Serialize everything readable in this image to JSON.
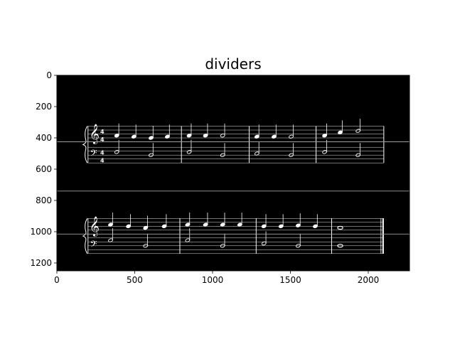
{
  "chart_data": {
    "type": "image",
    "title": "dividers",
    "xlabel": "",
    "ylabel": "",
    "xlim": [
      0,
      2265
    ],
    "ylim": [
      1250,
      0
    ],
    "x_ticks": [
      0,
      500,
      1000,
      1500,
      2000
    ],
    "y_ticks": [
      0,
      200,
      400,
      600,
      800,
      1000,
      1200
    ],
    "grid": false,
    "image_background": "#000000",
    "ink_color": "#ffffff",
    "divider_lines": [
      {
        "name": "system-1-staff-divider",
        "y": 425,
        "x_from": 0,
        "x_to": 2265
      },
      {
        "name": "system-divider",
        "y": 740,
        "x_from": 0,
        "x_to": 2265
      },
      {
        "name": "system-2-staff-divider",
        "y": 1015,
        "x_from": 0,
        "x_to": 2265
      }
    ],
    "systems": [
      {
        "name": "system-1",
        "x_start": 200,
        "x_end": 2100,
        "treble_y": [
          325,
          350,
          375,
          400,
          425
        ],
        "bass_y": [
          460,
          485,
          510,
          535,
          560
        ],
        "barlines_x": [
          800,
          1235,
          1665
        ],
        "final_barline_x": 2100,
        "time_signature": "4/4",
        "treble_notes": [
          {
            "x": 385,
            "y": 385,
            "kind": "quarter"
          },
          {
            "x": 495,
            "y": 392,
            "kind": "quarter"
          },
          {
            "x": 605,
            "y": 400,
            "kind": "quarter"
          },
          {
            "x": 710,
            "y": 392,
            "kind": "quarter"
          },
          {
            "x": 850,
            "y": 385,
            "kind": "quarter"
          },
          {
            "x": 955,
            "y": 385,
            "kind": "quarter"
          },
          {
            "x": 1065,
            "y": 385,
            "kind": "half"
          },
          {
            "x": 1285,
            "y": 392,
            "kind": "quarter"
          },
          {
            "x": 1395,
            "y": 392,
            "kind": "quarter"
          },
          {
            "x": 1505,
            "y": 392,
            "kind": "half"
          },
          {
            "x": 1720,
            "y": 385,
            "kind": "quarter"
          },
          {
            "x": 1820,
            "y": 365,
            "kind": "quarter"
          },
          {
            "x": 1935,
            "y": 355,
            "kind": "half"
          }
        ],
        "bass_notes": [
          {
            "x": 385,
            "y": 490,
            "kind": "half"
          },
          {
            "x": 605,
            "y": 510,
            "kind": "half"
          },
          {
            "x": 850,
            "y": 490,
            "kind": "half"
          },
          {
            "x": 1065,
            "y": 510,
            "kind": "half"
          },
          {
            "x": 1285,
            "y": 500,
            "kind": "half"
          },
          {
            "x": 1505,
            "y": 510,
            "kind": "half"
          },
          {
            "x": 1720,
            "y": 490,
            "kind": "half"
          },
          {
            "x": 1935,
            "y": 510,
            "kind": "half"
          }
        ]
      },
      {
        "name": "system-2",
        "x_start": 200,
        "x_end": 2100,
        "treble_y": [
          915,
          940,
          965,
          990,
          1015
        ],
        "bass_y": [
          1040,
          1065,
          1090,
          1115,
          1140
        ],
        "barlines_x": [
          790,
          1280,
          1765
        ],
        "final_barline_x": 2100,
        "time_signature": "",
        "treble_notes": [
          {
            "x": 345,
            "y": 955,
            "kind": "quarter"
          },
          {
            "x": 460,
            "y": 965,
            "kind": "quarter"
          },
          {
            "x": 570,
            "y": 975,
            "kind": "quarter"
          },
          {
            "x": 690,
            "y": 965,
            "kind": "quarter"
          },
          {
            "x": 840,
            "y": 955,
            "kind": "quarter"
          },
          {
            "x": 955,
            "y": 955,
            "kind": "quarter"
          },
          {
            "x": 1065,
            "y": 955,
            "kind": "quarter"
          },
          {
            "x": 1175,
            "y": 955,
            "kind": "quarter"
          },
          {
            "x": 1330,
            "y": 965,
            "kind": "quarter"
          },
          {
            "x": 1440,
            "y": 965,
            "kind": "quarter"
          },
          {
            "x": 1550,
            "y": 960,
            "kind": "quarter"
          },
          {
            "x": 1660,
            "y": 965,
            "kind": "quarter"
          },
          {
            "x": 1820,
            "y": 975,
            "kind": "whole"
          }
        ],
        "bass_notes": [
          {
            "x": 345,
            "y": 1055,
            "kind": "half"
          },
          {
            "x": 570,
            "y": 1090,
            "kind": "half"
          },
          {
            "x": 840,
            "y": 1055,
            "kind": "half"
          },
          {
            "x": 1065,
            "y": 1090,
            "kind": "half"
          },
          {
            "x": 1330,
            "y": 1075,
            "kind": "half"
          },
          {
            "x": 1550,
            "y": 1090,
            "kind": "half"
          },
          {
            "x": 1820,
            "y": 1090,
            "kind": "whole"
          }
        ]
      }
    ]
  }
}
